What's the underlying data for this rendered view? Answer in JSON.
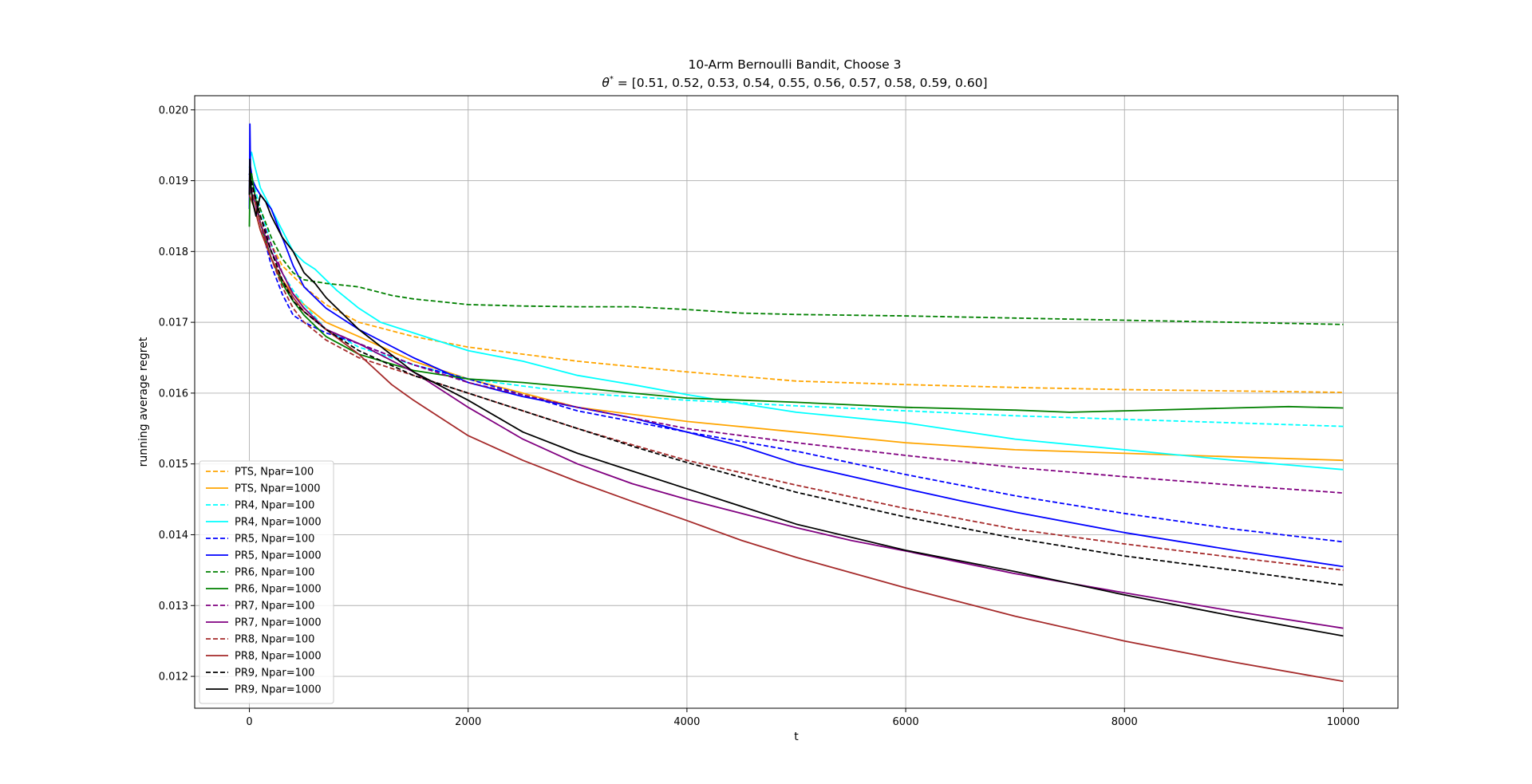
{
  "chart_data": {
    "type": "line",
    "title": "10-Arm Bernoulli Bandit, Choose 3",
    "subtitle_prefix": "θ",
    "subtitle_sup": "*",
    "subtitle_rest": " = [0.51, 0.52, 0.53, 0.54, 0.55, 0.56, 0.57, 0.58, 0.59, 0.60]",
    "xlabel": "t",
    "ylabel": "running average regret",
    "xlim": [
      -500,
      10500
    ],
    "ylim": [
      0.01155,
      0.0202
    ],
    "xticks": [
      0,
      2000,
      4000,
      6000,
      8000,
      10000
    ],
    "xtick_labels": [
      "0",
      "2000",
      "4000",
      "6000",
      "8000",
      "10000"
    ],
    "yticks": [
      0.012,
      0.013,
      0.014,
      0.015,
      0.016,
      0.017,
      0.018,
      0.019,
      0.02
    ],
    "ytick_labels": [
      "0.012",
      "0.013",
      "0.014",
      "0.015",
      "0.016",
      "0.017",
      "0.018",
      "0.019",
      "0.020"
    ],
    "grid": true,
    "legend_position": "lower-left",
    "series": [
      {
        "name": "PTS, Npar=100",
        "color": "#ffa500",
        "dashed": true,
        "x": [
          0,
          50,
          100,
          200,
          300,
          400,
          500,
          700,
          1000,
          1500,
          2000,
          3000,
          4000,
          5000,
          6000,
          7000,
          8000,
          9000,
          10000
        ],
        "y": [
          0.019,
          0.0188,
          0.0185,
          0.0181,
          0.0178,
          0.01765,
          0.0175,
          0.01725,
          0.017,
          0.0168,
          0.01665,
          0.01645,
          0.0163,
          0.01617,
          0.01612,
          0.01608,
          0.01605,
          0.01603,
          0.01601
        ]
      },
      {
        "name": "PTS, Npar=1000",
        "color": "#ffa500",
        "dashed": false,
        "x": [
          0,
          50,
          100,
          200,
          300,
          400,
          500,
          700,
          1000,
          1500,
          2000,
          3000,
          4000,
          5000,
          6000,
          7000,
          8000,
          9000,
          10000
        ],
        "y": [
          0.0188,
          0.0186,
          0.0183,
          0.0179,
          0.0176,
          0.0174,
          0.01725,
          0.017,
          0.0168,
          0.01645,
          0.0162,
          0.0158,
          0.0156,
          0.01545,
          0.0153,
          0.0152,
          0.01515,
          0.0151,
          0.01505
        ]
      },
      {
        "name": "PR4, Npar=100",
        "color": "#00ffff",
        "dashed": true,
        "x": [
          0,
          50,
          100,
          200,
          300,
          400,
          500,
          700,
          1000,
          1500,
          2000,
          3000,
          4000,
          5000,
          6000,
          7000,
          8000,
          9000,
          10000
        ],
        "y": [
          0.0192,
          0.0189,
          0.0186,
          0.0181,
          0.0177,
          0.01745,
          0.01725,
          0.0169,
          0.01665,
          0.0164,
          0.0162,
          0.016,
          0.0159,
          0.01582,
          0.01575,
          0.01568,
          0.01563,
          0.01558,
          0.01553
        ]
      },
      {
        "name": "PR4, Npar=1000",
        "color": "#00ffff",
        "dashed": false,
        "x": [
          0,
          20,
          50,
          100,
          200,
          300,
          400,
          500,
          600,
          800,
          1000,
          1200,
          1500,
          2000,
          2500,
          3000,
          3500,
          4000,
          4500,
          5000,
          6000,
          7000,
          8000,
          9000,
          10000
        ],
        "y": [
          0.0193,
          0.0194,
          0.0192,
          0.0189,
          0.0186,
          0.0183,
          0.018,
          0.01785,
          0.01775,
          0.01745,
          0.0172,
          0.017,
          0.01685,
          0.0166,
          0.01645,
          0.01625,
          0.01612,
          0.01598,
          0.01585,
          0.01573,
          0.01558,
          0.01535,
          0.0152,
          0.01505,
          0.01492
        ]
      },
      {
        "name": "PR5, Npar=100",
        "color": "#0000ff",
        "dashed": true,
        "x": [
          0,
          50,
          100,
          200,
          300,
          400,
          500,
          700,
          1000,
          1500,
          2000,
          3000,
          4000,
          5000,
          6000,
          7000,
          8000,
          9000,
          10000
        ],
        "y": [
          0.0191,
          0.0187,
          0.0184,
          0.0178,
          0.0174,
          0.0171,
          0.017,
          0.01685,
          0.0167,
          0.0164,
          0.0162,
          0.01575,
          0.01545,
          0.01518,
          0.01485,
          0.01455,
          0.0143,
          0.01408,
          0.0139
        ]
      },
      {
        "name": "PR5, Npar=1000",
        "color": "#0000ff",
        "dashed": false,
        "x": [
          0,
          5,
          10,
          30,
          60,
          100,
          200,
          300,
          400,
          500,
          700,
          1000,
          1500,
          2000,
          2500,
          3000,
          3500,
          4000,
          4500,
          5000,
          6000,
          6500,
          7000,
          8000,
          9000,
          10000
        ],
        "y": [
          0.0186,
          0.0198,
          0.0192,
          0.019,
          0.0189,
          0.0188,
          0.0186,
          0.0182,
          0.0178,
          0.0175,
          0.0172,
          0.0169,
          0.0165,
          0.01615,
          0.01595,
          0.0158,
          0.01565,
          0.01545,
          0.01525,
          0.015,
          0.01465,
          0.01448,
          0.01432,
          0.01403,
          0.01378,
          0.01355
        ]
      },
      {
        "name": "PR6, Npar=100",
        "color": "#008000",
        "dashed": true,
        "x": [
          0,
          50,
          100,
          200,
          300,
          400,
          500,
          700,
          1000,
          1300,
          1500,
          2000,
          2500,
          3000,
          3500,
          4000,
          4500,
          5000,
          6000,
          7000,
          8000,
          9000,
          10000
        ],
        "y": [
          0.019,
          0.0188,
          0.0186,
          0.0182,
          0.0179,
          0.0177,
          0.0176,
          0.01755,
          0.0175,
          0.01738,
          0.01733,
          0.01725,
          0.01723,
          0.01722,
          0.01722,
          0.01718,
          0.01713,
          0.01711,
          0.01709,
          0.01706,
          0.01703,
          0.017,
          0.01697
        ]
      },
      {
        "name": "PR6, Npar=1000",
        "color": "#008000",
        "dashed": false,
        "x": [
          0,
          5,
          20,
          50,
          100,
          200,
          300,
          400,
          500,
          700,
          1000,
          1500,
          2000,
          2500,
          3000,
          3500,
          4000,
          5000,
          6000,
          7000,
          7500,
          8000,
          9000,
          9500,
          10000
        ],
        "y": [
          0.01835,
          0.0189,
          0.0191,
          0.0188,
          0.0184,
          0.0179,
          0.01755,
          0.0173,
          0.0171,
          0.0168,
          0.01655,
          0.01632,
          0.0162,
          0.01615,
          0.01608,
          0.016,
          0.01593,
          0.01587,
          0.0158,
          0.01576,
          0.01573,
          0.01575,
          0.01579,
          0.01581,
          0.01579
        ]
      },
      {
        "name": "PR7, Npar=100",
        "color": "#800080",
        "dashed": true,
        "x": [
          0,
          50,
          100,
          200,
          300,
          400,
          500,
          700,
          1000,
          1500,
          2000,
          3000,
          4000,
          5000,
          6000,
          7000,
          8000,
          9000,
          10000
        ],
        "y": [
          0.019,
          0.0188,
          0.0185,
          0.0181,
          0.0177,
          0.0174,
          0.0172,
          0.0169,
          0.0167,
          0.0164,
          0.01615,
          0.0158,
          0.0155,
          0.0153,
          0.01512,
          0.01495,
          0.01482,
          0.0147,
          0.01459
        ]
      },
      {
        "name": "PR7, Npar=1000",
        "color": "#800080",
        "dashed": false,
        "x": [
          0,
          50,
          100,
          200,
          300,
          400,
          500,
          700,
          1000,
          1500,
          2000,
          2500,
          3000,
          3500,
          4000,
          4500,
          5000,
          5500,
          6000,
          7000,
          8000,
          9000,
          10000
        ],
        "y": [
          0.0189,
          0.0187,
          0.0184,
          0.018,
          0.0177,
          0.0174,
          0.0172,
          0.0169,
          0.0167,
          0.0163,
          0.0158,
          0.01535,
          0.015,
          0.01472,
          0.0145,
          0.0143,
          0.0141,
          0.01392,
          0.01377,
          0.01345,
          0.01318,
          0.01292,
          0.01268
        ]
      },
      {
        "name": "PR8, Npar=100",
        "color": "#a52a2a",
        "dashed": true,
        "x": [
          0,
          50,
          100,
          200,
          300,
          400,
          500,
          700,
          1000,
          1500,
          2000,
          2500,
          3000,
          3500,
          4000,
          5000,
          6000,
          7000,
          8000,
          9000,
          10000
        ],
        "y": [
          0.019,
          0.0187,
          0.0184,
          0.0179,
          0.0175,
          0.0172,
          0.017,
          0.01675,
          0.0165,
          0.01625,
          0.016,
          0.01575,
          0.0155,
          0.01527,
          0.01505,
          0.0147,
          0.01437,
          0.01408,
          0.01387,
          0.01368,
          0.0135
        ]
      },
      {
        "name": "PR8, Npar=1000",
        "color": "#a52a2a",
        "dashed": false,
        "x": [
          0,
          50,
          100,
          200,
          300,
          400,
          500,
          700,
          1000,
          1300,
          1500,
          2000,
          2500,
          3000,
          3500,
          4000,
          4500,
          5000,
          6000,
          7000,
          8000,
          9000,
          10000
        ],
        "y": [
          0.0188,
          0.0186,
          0.0183,
          0.0179,
          0.0176,
          0.01735,
          0.01715,
          0.0169,
          0.01655,
          0.01612,
          0.0159,
          0.0154,
          0.01505,
          0.01475,
          0.01447,
          0.0142,
          0.01392,
          0.01368,
          0.01325,
          0.01285,
          0.0125,
          0.0122,
          0.01193
        ]
      },
      {
        "name": "PR9, Npar=100",
        "color": "#000000",
        "dashed": true,
        "x": [
          0,
          50,
          100,
          200,
          300,
          400,
          500,
          700,
          1000,
          1500,
          2000,
          2500,
          3000,
          3500,
          4000,
          5000,
          6000,
          7000,
          8000,
          9000,
          10000
        ],
        "y": [
          0.0191,
          0.0188,
          0.0185,
          0.018,
          0.0176,
          0.0173,
          0.01715,
          0.0169,
          0.0166,
          0.01625,
          0.016,
          0.01575,
          0.0155,
          0.01525,
          0.01502,
          0.0146,
          0.01425,
          0.01395,
          0.0137,
          0.0135,
          0.01329
        ]
      },
      {
        "name": "PR9, Npar=1000",
        "color": "#000000",
        "dashed": false,
        "x": [
          0,
          5,
          10,
          30,
          60,
          100,
          150,
          200,
          300,
          400,
          500,
          600,
          700,
          800,
          1000,
          1500,
          2000,
          2500,
          3000,
          3500,
          4000,
          4500,
          5000,
          6000,
          7000,
          8000,
          9000,
          10000
        ],
        "y": [
          0.0188,
          0.0193,
          0.019,
          0.0187,
          0.0185,
          0.0188,
          0.0187,
          0.0185,
          0.0182,
          0.018,
          0.0177,
          0.01755,
          0.01735,
          0.0172,
          0.0169,
          0.0163,
          0.0159,
          0.01545,
          0.01515,
          0.0149,
          0.01465,
          0.0144,
          0.01415,
          0.01378,
          0.01348,
          0.01315,
          0.01285,
          0.01257
        ]
      }
    ]
  }
}
